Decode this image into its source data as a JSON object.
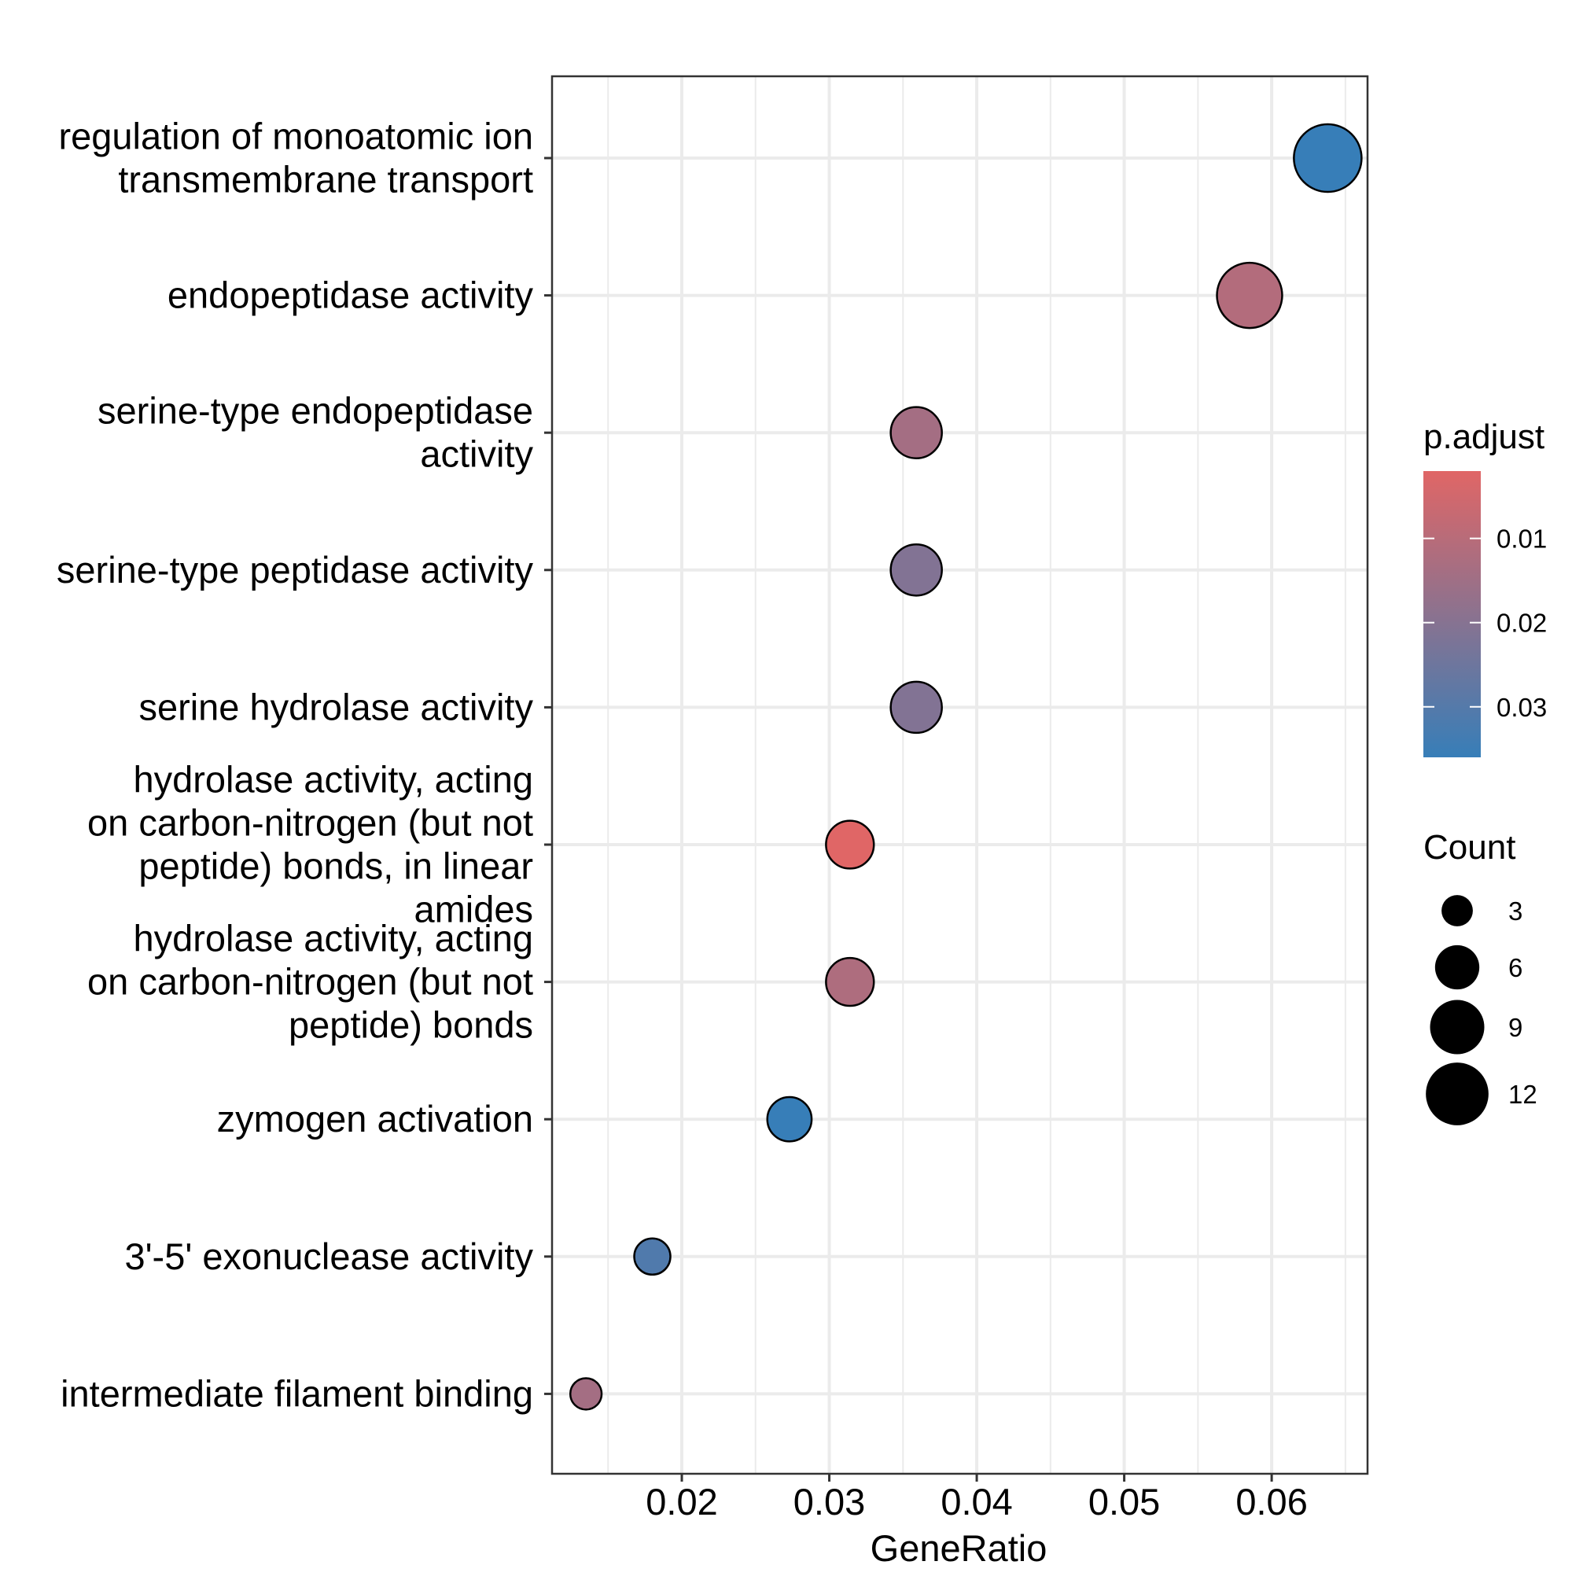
{
  "chart_data": {
    "type": "scatter",
    "xlabel": "GeneRatio",
    "ylabel": "",
    "xlim": [
      0.0112,
      0.0665
    ],
    "x_ticks": [
      0.02,
      0.03,
      0.04,
      0.05,
      0.06
    ],
    "x_tick_labels": [
      "0.02",
      "0.03",
      "0.04",
      "0.05",
      "0.06"
    ],
    "grid": true,
    "categories": [
      {
        "lines": [
          "regulation of monoatomic ion",
          "transmembrane transport"
        ],
        "gene_ratio": 0.0638,
        "count": 14,
        "p_adjust": 0.036
      },
      {
        "lines": [
          "endopeptidase activity"
        ],
        "gene_ratio": 0.0585,
        "count": 13,
        "p_adjust": 0.011
      },
      {
        "lines": [
          "serine-type endopeptidase",
          "activity"
        ],
        "gene_ratio": 0.0359,
        "count": 8,
        "p_adjust": 0.014
      },
      {
        "lines": [
          "serine-type peptidase activity"
        ],
        "gene_ratio": 0.0359,
        "count": 8,
        "p_adjust": 0.021
      },
      {
        "lines": [
          "serine hydrolase activity"
        ],
        "gene_ratio": 0.0359,
        "count": 8,
        "p_adjust": 0.021
      },
      {
        "lines": [
          "hydrolase activity, acting",
          "on carbon-nitrogen (but not",
          "peptide) bonds, in linear",
          "amides"
        ],
        "gene_ratio": 0.0314,
        "count": 7,
        "p_adjust": 0.002
      },
      {
        "lines": [
          "hydrolase activity, acting",
          "on carbon-nitrogen (but not",
          "peptide) bonds"
        ],
        "gene_ratio": 0.0314,
        "count": 7,
        "p_adjust": 0.012
      },
      {
        "lines": [
          "zymogen activation"
        ],
        "gene_ratio": 0.0273,
        "count": 6,
        "p_adjust": 0.036
      },
      {
        "lines": [
          "3'-5' exonuclease activity"
        ],
        "gene_ratio": 0.018,
        "count": 4,
        "p_adjust": 0.031
      },
      {
        "lines": [
          "intermediate filament binding"
        ],
        "gene_ratio": 0.0135,
        "count": 3,
        "p_adjust": 0.014
      }
    ],
    "legend": {
      "placement": "right",
      "color": {
        "title": "p.adjust",
        "ticks": [
          0.01,
          0.02,
          0.03
        ],
        "tick_labels": [
          "0.01",
          "0.02",
          "0.03"
        ],
        "range": [
          0.002,
          0.036
        ],
        "low_color": "#e06666",
        "high_color": "#377eb8"
      },
      "size": {
        "title": "Count",
        "values": [
          3,
          6,
          9,
          12
        ],
        "labels": [
          "3",
          "6",
          "9",
          "12"
        ]
      }
    }
  }
}
